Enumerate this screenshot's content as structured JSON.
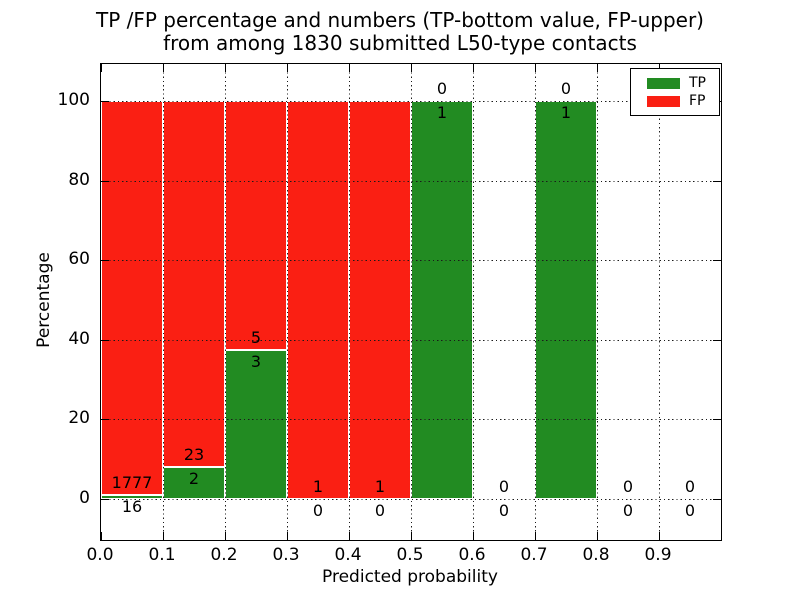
{
  "figure": {
    "title_line1": "TP /FP percentage and numbers (TP-bottom value, FP-upper)",
    "title_line2": "from among 1830 submitted L50-type contacts",
    "background": "#ffffff"
  },
  "axes": {
    "xlabel": "Predicted probability",
    "ylabel": "Percentage",
    "xticks": [
      {
        "label": "0.0",
        "value": 0.0
      },
      {
        "label": "0.1",
        "value": 0.1
      },
      {
        "label": "0.2",
        "value": 0.2
      },
      {
        "label": "0.3",
        "value": 0.3
      },
      {
        "label": "0.4",
        "value": 0.4
      },
      {
        "label": "0.5",
        "value": 0.5
      },
      {
        "label": "0.6",
        "value": 0.6
      },
      {
        "label": "0.7",
        "value": 0.7
      },
      {
        "label": "0.8",
        "value": 0.8
      },
      {
        "label": "0.9",
        "value": 0.9
      }
    ],
    "yticks": [
      {
        "label": "0",
        "value": 0
      },
      {
        "label": "20",
        "value": 20
      },
      {
        "label": "40",
        "value": 40
      },
      {
        "label": "60",
        "value": 60
      },
      {
        "label": "80",
        "value": 80
      },
      {
        "label": "100",
        "value": 100
      }
    ],
    "xlim": [
      0.0,
      1.0
    ],
    "ylim": [
      -10.7,
      109.3
    ],
    "grid_style": "dotted",
    "spine_color": "#000000"
  },
  "legend": {
    "position": "upper-right",
    "items": [
      {
        "label": "TP",
        "color": "#228b22"
      },
      {
        "label": "FP",
        "color": "#fa1f13"
      }
    ]
  },
  "chart_data": {
    "type": "bar",
    "stacked": true,
    "title": "TP /FP percentage and numbers (TP-bottom value, FP-upper) from among 1830 submitted L50-type contacts",
    "xlabel": "Predicted probability",
    "ylabel": "Percentage",
    "total_contacts": 1830,
    "bin_edges": [
      0.0,
      0.1,
      0.2,
      0.3,
      0.4,
      0.5,
      0.6,
      0.7,
      0.8,
      0.9,
      1.0
    ],
    "grid": "dotted",
    "legend_position": "upper right",
    "label_rule": "TP count below stack boundary, FP count above stack boundary",
    "bins": [
      {
        "range": "0.0-0.1",
        "tp_count": 16,
        "fp_count": 1777,
        "tp_pct": 0.89,
        "fp_pct": 99.11
      },
      {
        "range": "0.1-0.2",
        "tp_count": 2,
        "fp_count": 23,
        "tp_pct": 8.0,
        "fp_pct": 92.0
      },
      {
        "range": "0.2-0.3",
        "tp_count": 3,
        "fp_count": 5,
        "tp_pct": 37.5,
        "fp_pct": 62.5
      },
      {
        "range": "0.3-0.4",
        "tp_count": 0,
        "fp_count": 1,
        "tp_pct": 0,
        "fp_pct": 100
      },
      {
        "range": "0.4-0.5",
        "tp_count": 0,
        "fp_count": 1,
        "tp_pct": 0,
        "fp_pct": 100
      },
      {
        "range": "0.5-0.6",
        "tp_count": 1,
        "fp_count": 0,
        "tp_pct": 100,
        "fp_pct": 0
      },
      {
        "range": "0.6-0.7",
        "tp_count": 0,
        "fp_count": 0,
        "tp_pct": 0,
        "fp_pct": 0
      },
      {
        "range": "0.7-0.8",
        "tp_count": 1,
        "fp_count": 0,
        "tp_pct": 100,
        "fp_pct": 0
      },
      {
        "range": "0.8-0.9",
        "tp_count": 0,
        "fp_count": 0,
        "tp_pct": 0,
        "fp_pct": 0
      },
      {
        "range": "0.9-1.0",
        "tp_count": 0,
        "fp_count": 0,
        "tp_pct": 0,
        "fp_pct": 0
      }
    ],
    "colors": {
      "tp": "#228b22",
      "fp": "#fa1f13",
      "bar_edge": "#ffffff",
      "grid": "#1a1a1a"
    }
  }
}
